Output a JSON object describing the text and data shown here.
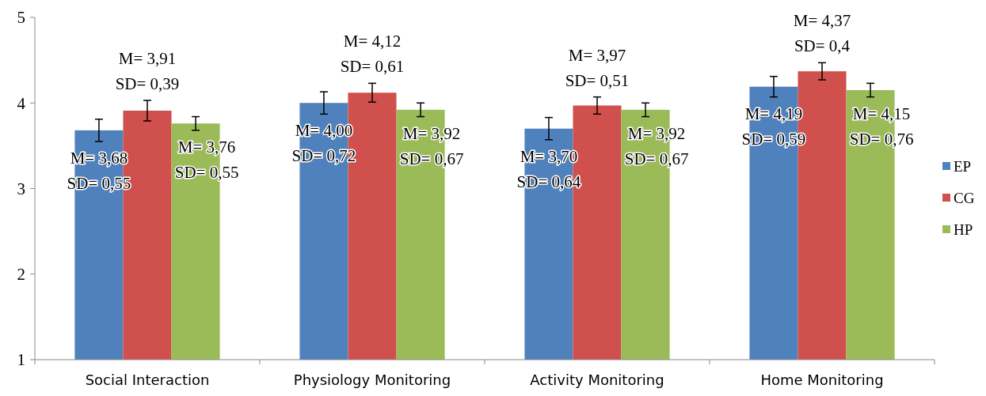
{
  "chart_data": {
    "type": "bar",
    "categories": [
      "Social Interaction",
      "Physiology Monitoring",
      "Activity Monitoring",
      "Home Monitoring"
    ],
    "series": [
      {
        "name": "EP",
        "color": "#4f81bd",
        "values": [
          3.68,
          4.0,
          3.7,
          4.19
        ],
        "errors": [
          0.13,
          0.13,
          0.13,
          0.12
        ],
        "value_labels": [
          "M= 3,68\nSD= 0,55",
          "M= 4,00\nSD= 0,72",
          "M= 3,70\nSD= 0,64",
          "M= 4,19\nSD= 0,59"
        ]
      },
      {
        "name": "CG",
        "color": "#d0504d",
        "values": [
          3.91,
          4.12,
          3.97,
          4.37
        ],
        "errors": [
          0.12,
          0.11,
          0.1,
          0.1
        ],
        "value_labels": [
          "M= 3,91\nSD= 0,39",
          "M= 4,12\nSD= 0,61",
          "M= 3,97\nSD= 0,51",
          "M= 4,37\nSD= 0,4"
        ]
      },
      {
        "name": "HP",
        "color": "#9bbb59",
        "values": [
          3.76,
          3.92,
          3.92,
          4.15
        ],
        "errors": [
          0.08,
          0.08,
          0.08,
          0.08
        ],
        "value_labels": [
          "M= 3,76\nSD= 0,55",
          "M= 3,92\nSD= 0,67",
          "M= 3,92\nSD= 0,67",
          "M= 4,15\nSD= 0,76"
        ]
      }
    ],
    "ylim": [
      1,
      5
    ],
    "yticks": [
      1,
      2,
      3,
      4,
      5
    ],
    "grid": false,
    "legend": "right"
  }
}
